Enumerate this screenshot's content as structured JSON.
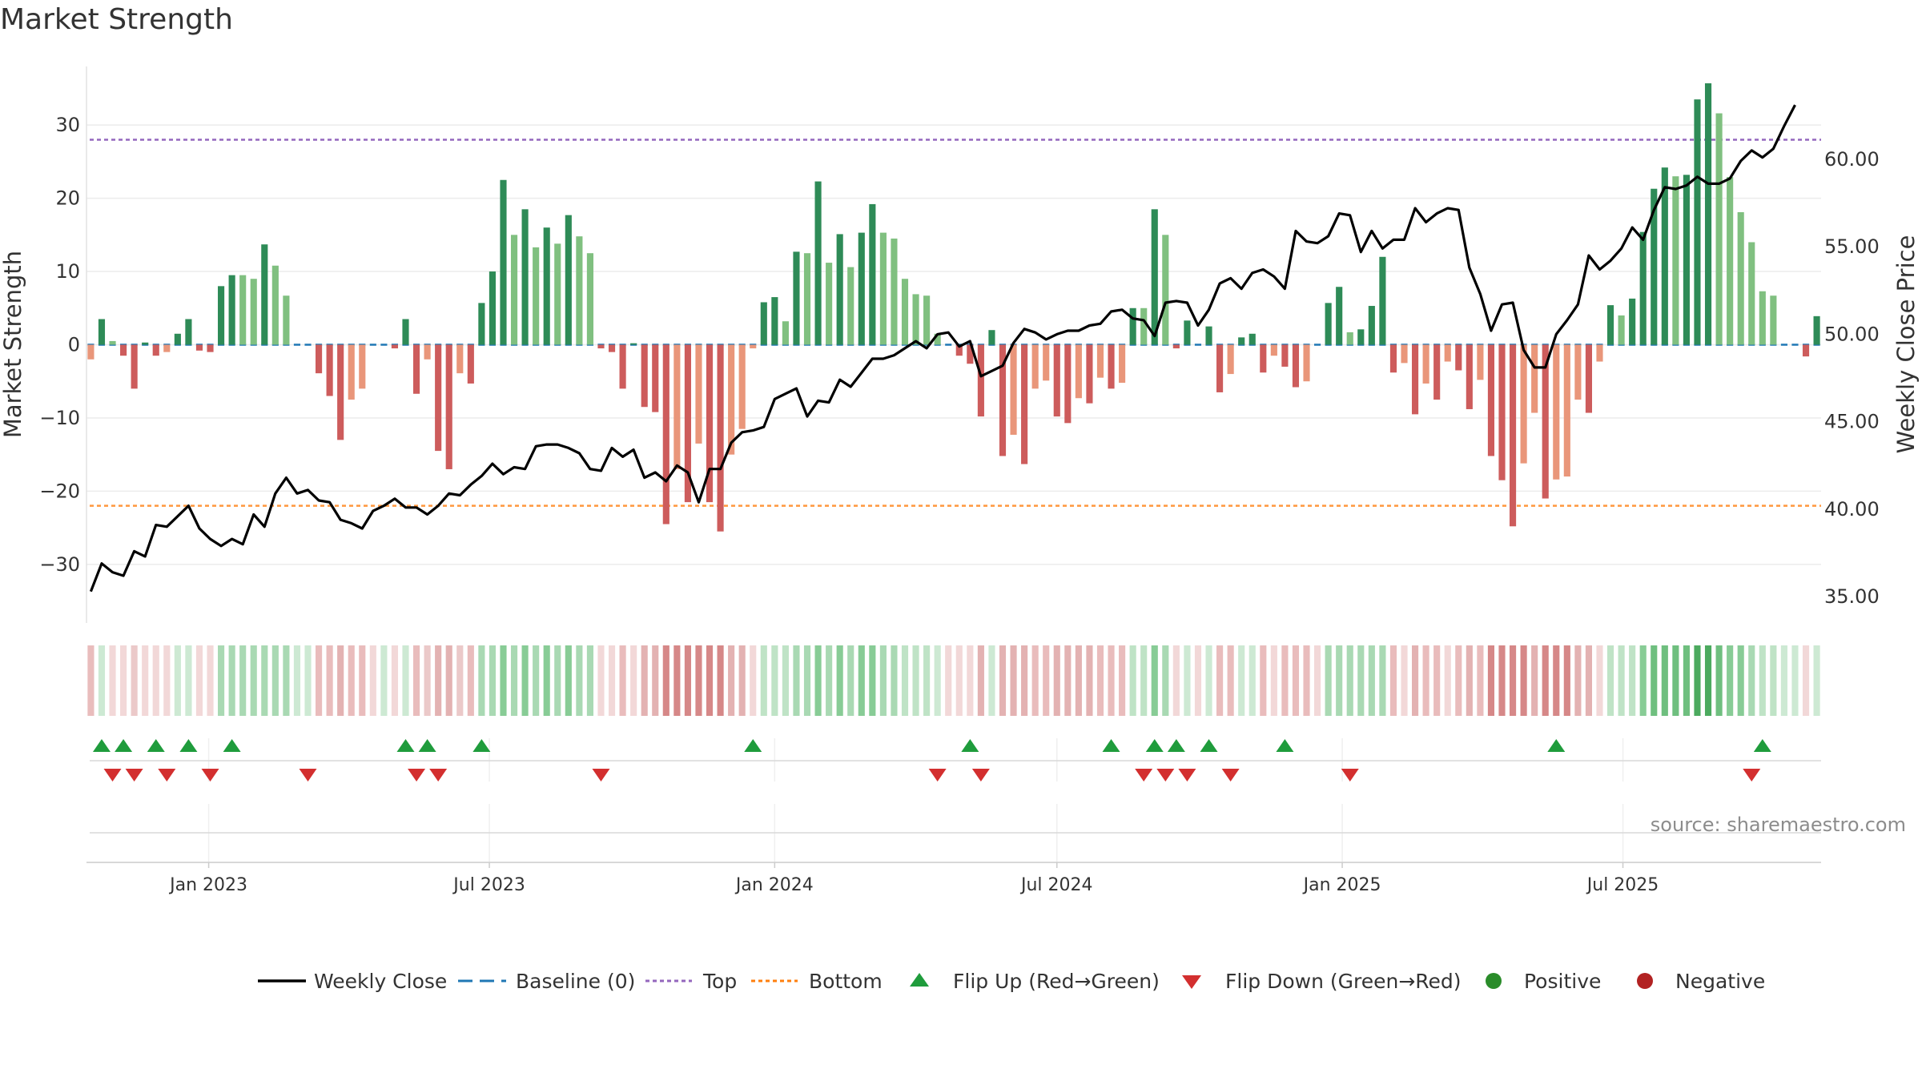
{
  "chart_data": {
    "type": "bar",
    "title": "Market Strength",
    "ylabel": "Market Strength",
    "y2label": "Weekly Close Price",
    "ylim": [
      -38,
      38
    ],
    "y2lim": [
      33.5,
      65.3
    ],
    "yticks": [
      30,
      20,
      10,
      0,
      -10,
      -20,
      -30
    ],
    "ytick_labels": [
      "30",
      "20",
      "10",
      "0",
      "−10",
      "−20",
      "−30"
    ],
    "y2ticks": [
      60,
      55,
      50,
      45,
      40,
      35
    ],
    "y2tick_labels": [
      "60.00",
      "55.00",
      "50.00",
      "45.00",
      "40.00",
      "35.00"
    ],
    "x_start": "2022-10-17",
    "week_interval_days": 7,
    "xticks": [
      {
        "date": "2023-01-01",
        "label": "Jan 2023"
      },
      {
        "date": "2023-07-01",
        "label": "Jul 2023"
      },
      {
        "date": "2024-01-01",
        "label": "Jan 2024"
      },
      {
        "date": "2024-07-01",
        "label": "Jul 2024"
      },
      {
        "date": "2025-01-01",
        "label": "Jan 2025"
      },
      {
        "date": "2025-07-01",
        "label": "Jul 2025"
      }
    ],
    "reference_lines": {
      "top": 28,
      "bottom": -22,
      "baseline": 0
    },
    "strength": [
      -2,
      3.5,
      0.5,
      -1.5,
      -6,
      0.3,
      -1.5,
      -1,
      1.5,
      3.5,
      -0.8,
      -1,
      8,
      9.5,
      9.5,
      9,
      13.7,
      10.8,
      6.7,
      0,
      0,
      -3.9,
      -7,
      -13,
      -7.5,
      -6,
      0,
      0,
      -0.5,
      3.5,
      -6.7,
      -2,
      -14.5,
      -17,
      -3.9,
      -5.3,
      5.7,
      10,
      22.5,
      15,
      18.5,
      13.3,
      16,
      13.8,
      17.7,
      14.8,
      12.5,
      -0.5,
      -1,
      -6,
      0.2,
      -8.5,
      -9.2,
      -24.5,
      -17,
      -21.5,
      -13.5,
      -21.5,
      -25.5,
      -15,
      -11.5,
      -0.5,
      5.8,
      6.5,
      3.2,
      12.7,
      12.5,
      22.3,
      11.2,
      15.1,
      10.6,
      15.3,
      19.2,
      15.3,
      14.5,
      9,
      6.9,
      6.7,
      1.5,
      0,
      -1.5,
      -2.6,
      -9.8,
      2,
      -15.2,
      -12.3,
      -16.3,
      -6,
      -4.9,
      -9.8,
      -10.7,
      -7.3,
      -8,
      -4.5,
      -6,
      -5.2,
      5,
      5,
      18.5,
      15,
      -0.5,
      3.3,
      0,
      2.5,
      -6.5,
      -4,
      1,
      1.5,
      -3.8,
      -1.5,
      -3,
      -5.8,
      -5,
      0,
      5.7,
      7.9,
      1.7,
      2.1,
      5.3,
      12,
      -3.8,
      -2.5,
      -9.5,
      -5.3,
      -7.5,
      -2.3,
      -3.5,
      -8.8,
      -4.8,
      -15.2,
      -18.5,
      -24.8,
      -16.2,
      -9.3,
      -21,
      -18.4,
      -18,
      -7.5,
      -9.3,
      -2.3,
      5.4,
      4,
      6.3,
      15.4,
      21.3,
      24.2,
      23,
      23.2,
      33.5,
      35.7,
      31.6,
      22.9,
      18.1,
      14,
      7.3,
      6.7,
      0,
      0,
      -1.6,
      3.9
    ],
    "weekly_close": {
      "name": "Weekly Close",
      "values": [
        35.3,
        36.9,
        36.4,
        36.2,
        37.6,
        37.3,
        39.1,
        39,
        39.6,
        40.2,
        38.9,
        38.3,
        37.9,
        38.3,
        38,
        39.7,
        39,
        40.9,
        41.8,
        40.9,
        41.1,
        40.5,
        40.4,
        39.4,
        39.2,
        38.9,
        39.9,
        40.2,
        40.6,
        40.1,
        40.1,
        39.7,
        40.2,
        40.9,
        40.8,
        41.4,
        41.9,
        42.6,
        42,
        42.4,
        42.3,
        43.6,
        43.7,
        43.7,
        43.5,
        43.2,
        42.3,
        42.2,
        43.5,
        43,
        43.4,
        41.8,
        42.1,
        41.6,
        42.5,
        42.1,
        40.4,
        42.3,
        42.3,
        43.8,
        44.4,
        44.5,
        44.7,
        46.3,
        46.6,
        46.9,
        45.3,
        46.2,
        46.1,
        47.4,
        47,
        47.8,
        48.6,
        48.6,
        48.8,
        49.2,
        49.6,
        49.2,
        50,
        50.1,
        49.3,
        49.6,
        47.6,
        47.9,
        48.2,
        49.5,
        50.3,
        50.1,
        49.7,
        50,
        50.2,
        50.2,
        50.5,
        50.6,
        51.3,
        51.4,
        50.9,
        50.8,
        49.9,
        51.8,
        51.9,
        51.8,
        50.5,
        51.4,
        52.9,
        53.2,
        52.6,
        53.5,
        53.7,
        53.3,
        52.6,
        55.9,
        55.3,
        55.2,
        55.6,
        56.9,
        56.8,
        54.7,
        55.9,
        54.9,
        55.4,
        55.4,
        57.2,
        56.4,
        56.9,
        57.2,
        57.1,
        53.8,
        52.3,
        50.2,
        51.7,
        51.8,
        49.1,
        48.1,
        48.1,
        50,
        50.8,
        51.7,
        54.5,
        53.7,
        54.2,
        54.9,
        56.1,
        55.4,
        57.1,
        58.4,
        58.3,
        58.5,
        59,
        58.6,
        58.6,
        58.9,
        59.9,
        60.5,
        60.1,
        60.6,
        61.9,
        63.1
      ]
    },
    "panel2_bar_colors": [
      "#e9bcbc",
      "#cde9d3",
      "#f2d8d8",
      "#f2d8d8",
      "#ebc9c9",
      "#f2d8d8",
      "#f2d8d8",
      "#f2d8d8",
      "#cde9d3",
      "#cde9d3",
      "#f2d8d8",
      "#f2d8d8",
      "#a9d9b3",
      "#a9d9b3",
      "#a9d9b3",
      "#a9d9b3",
      "#a9d9b3",
      "#a9d9b3",
      "#a9d9b3",
      "#cde9d3",
      "#cde9d3",
      "#e9bcbc",
      "#e9bcbc",
      "#e3b2b2",
      "#e9bcbc",
      "#e9bcbc",
      "#f2d8d8",
      "#cde9d3",
      "#f2d8d8",
      "#cde9d3",
      "#e9bcbc",
      "#ebc9c9",
      "#e3b2b2",
      "#e3b2b2",
      "#ebc9c9",
      "#e9bcbc",
      "#a9d9b3",
      "#a9d9b3",
      "#88cc96",
      "#a9d9b3",
      "#88cc96",
      "#a9d9b3",
      "#88cc96",
      "#a9d9b3",
      "#88cc96",
      "#a9d9b3",
      "#a9d9b3",
      "#f2d8d8",
      "#f2d8d8",
      "#e9bcbc",
      "#f2d8d8",
      "#e3b2b2",
      "#e3b2b2",
      "#d68888",
      "#d68888",
      "#d68888",
      "#d68888",
      "#d68888",
      "#d68888",
      "#e3b2b2",
      "#e3b2b2",
      "#f2d8d8",
      "#bfe3c6",
      "#bfe3c6",
      "#bfe3c6",
      "#a9d9b3",
      "#a9d9b3",
      "#88cc96",
      "#a9d9b3",
      "#88cc96",
      "#a9d9b3",
      "#88cc96",
      "#88cc96",
      "#a9d9b3",
      "#a9d9b3",
      "#bfe3c6",
      "#bfe3c6",
      "#bfe3c6",
      "#cde9d3",
      "#f2d8d8",
      "#f2d8d8",
      "#f2d8d8",
      "#e3b2b2",
      "#cde9d3",
      "#e3b2b2",
      "#e3b2b2",
      "#e3b2b2",
      "#e9bcbc",
      "#e9bcbc",
      "#e3b2b2",
      "#e3b2b2",
      "#e3b2b2",
      "#e3b2b2",
      "#e9bcbc",
      "#e9bcbc",
      "#e9bcbc",
      "#bfe3c6",
      "#bfe3c6",
      "#88cc96",
      "#a9d9b3",
      "#f2d8d8",
      "#cde9d3",
      "#f2d8d8",
      "#cde9d3",
      "#e9bcbc",
      "#e9bcbc",
      "#cde9d3",
      "#cde9d3",
      "#e9bcbc",
      "#f2d8d8",
      "#e9bcbc",
      "#e9bcbc",
      "#e9bcbc",
      "#f2d8d8",
      "#a9d9b3",
      "#a9d9b3",
      "#a9d9b3",
      "#a9d9b3",
      "#a9d9b3",
      "#a9d9b3",
      "#e9bcbc",
      "#f2d8d8",
      "#e3b2b2",
      "#e9bcbc",
      "#e9bcbc",
      "#f2d8d8",
      "#e9bcbc",
      "#e3b2b2",
      "#e9bcbc",
      "#d68888",
      "#d68888",
      "#d68888",
      "#d68888",
      "#e3b2b2",
      "#d68888",
      "#d68888",
      "#d68888",
      "#e3b2b2",
      "#e3b2b2",
      "#f2d8d8",
      "#bfe3c6",
      "#bfe3c6",
      "#bfe3c6",
      "#88cc96",
      "#6fbf7f",
      "#6fbf7f",
      "#6fbf7f",
      "#6fbf7f",
      "#4caa5f",
      "#4caa5f",
      "#6fbf7f",
      "#88cc96",
      "#88cc96",
      "#a9d9b3",
      "#bfe3c6",
      "#bfe3c6",
      "#cde9d3",
      "#cde9d3",
      "#f2d8d8",
      "#cde9d3"
    ],
    "flip_up": [
      "2022-10-24",
      "2022-11-07",
      "2022-11-28",
      "2022-12-19",
      "2023-01-16",
      "2023-05-08",
      "2023-05-22",
      "2023-06-26",
      "2023-12-18",
      "2024-05-06",
      "2024-08-05",
      "2024-09-02",
      "2024-09-16",
      "2024-10-07",
      "2024-11-25",
      "2025-05-19",
      "2025-09-29"
    ],
    "flip_down": [
      "2022-10-31",
      "2022-11-14",
      "2022-12-05",
      "2023-01-02",
      "2023-03-06",
      "2023-05-15",
      "2023-05-29",
      "2023-09-11",
      "2024-04-15",
      "2024-05-13",
      "2024-08-26",
      "2024-09-09",
      "2024-09-23",
      "2024-10-21",
      "2025-01-06",
      "2025-09-22"
    ],
    "legend": [
      {
        "type": "line",
        "label": "Weekly Close",
        "color": "#000000"
      },
      {
        "type": "dash",
        "label": "Baseline (0)",
        "color": "#1f77b4"
      },
      {
        "type": "dotted",
        "label": "Top",
        "color": "#9467bd"
      },
      {
        "type": "dotted",
        "label": "Bottom",
        "color": "#ff7f0e"
      },
      {
        "type": "triangle-up",
        "label": "Flip Up (Red→Green)",
        "color": "#1f9c3c"
      },
      {
        "type": "triangle-down",
        "label": "Flip Down (Green→Red)",
        "color": "#d32f2f"
      },
      {
        "type": "circle",
        "label": "Positive",
        "color": "#2a8c2a"
      },
      {
        "type": "circle",
        "label": "Negative",
        "color": "#b22222"
      }
    ],
    "grid": true,
    "legend_position": "bottom-center"
  },
  "colors": {
    "pos_strong": "#2e8b57",
    "pos_weak": "#80c080",
    "neg_strong": "#cd5c5c",
    "neg_weak": "#e9967a",
    "flip_up": "#1f9c3c",
    "flip_down": "#d32f2f",
    "top_line": "#9467bd",
    "bottom_line": "#ff7f0e",
    "baseline": "#1f77b4"
  },
  "source_note": "source: sharemaestro.com"
}
